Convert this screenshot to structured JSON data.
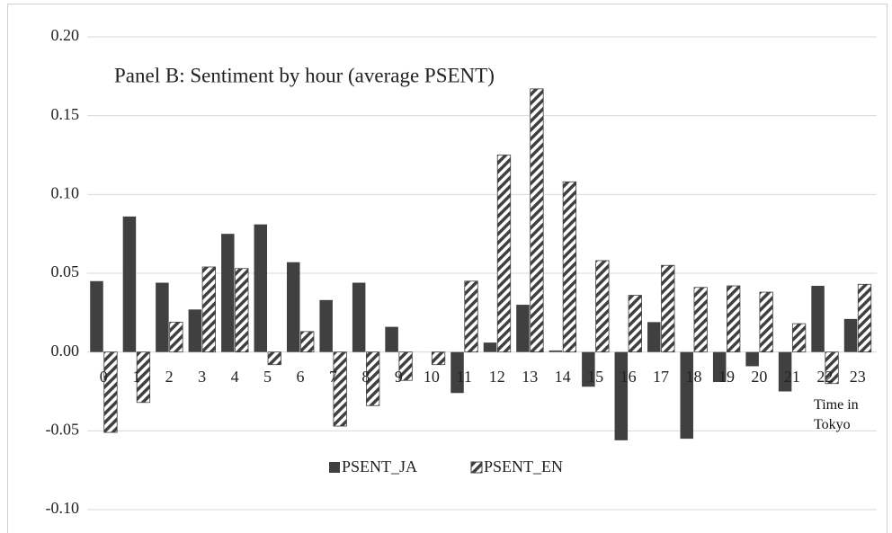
{
  "chart_data": {
    "type": "bar",
    "title": "Panel B: Sentiment by hour (average PSENT)",
    "x_label": "Time in Tokyo",
    "categories": [
      "0",
      "1",
      "2",
      "3",
      "4",
      "5",
      "6",
      "7",
      "8",
      "9",
      "10",
      "11",
      "12",
      "13",
      "14",
      "15",
      "16",
      "17",
      "18",
      "19",
      "20",
      "21",
      "22",
      "23"
    ],
    "series": [
      {
        "name": "PSENT_JA",
        "color": "#404040",
        "pattern": "solid",
        "values": [
          0.045,
          0.086,
          0.044,
          0.027,
          0.075,
          0.081,
          0.057,
          0.033,
          0.044,
          0.016,
          0,
          -0.026,
          0.006,
          0.03,
          0.001,
          -0.022,
          -0.056,
          0.019,
          -0.055,
          -0.019,
          -0.009,
          -0.025,
          0.042,
          0.021
        ]
      },
      {
        "name": "PSENT_EN",
        "color": "#404040",
        "pattern": "hatch",
        "values": [
          -0.051,
          -0.032,
          0.019,
          0.054,
          0.053,
          -0.008,
          0.013,
          -0.047,
          -0.034,
          -0.018,
          -0.008,
          0.045,
          0.125,
          0.167,
          0.108,
          0.058,
          0.036,
          0.055,
          0.041,
          0.042,
          0.038,
          0.018,
          -0.02,
          0.043
        ]
      }
    ],
    "ylim": [
      -0.1,
      0.2
    ],
    "yticks": [
      {
        "value": -0.1,
        "label": "-0.10"
      },
      {
        "value": -0.05,
        "label": "-0.05"
      },
      {
        "value": 0,
        "label": "0.00"
      },
      {
        "value": 0.05,
        "label": "0.05"
      },
      {
        "value": 0.1,
        "label": "0.10"
      },
      {
        "value": 0.15,
        "label": "0.15"
      },
      {
        "value": 0.2,
        "label": "0.20"
      }
    ],
    "grid": true,
    "legend": "bottom"
  }
}
